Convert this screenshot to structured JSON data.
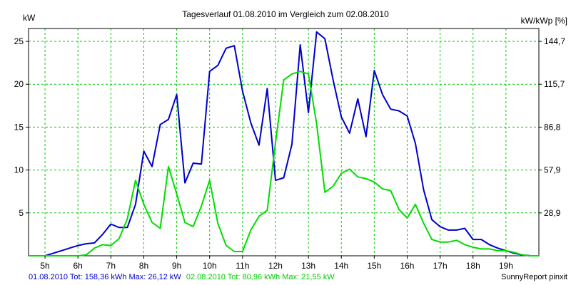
{
  "chart_data": {
    "type": "line",
    "title": "Tagesverlauf 01.08.2010 im Vergleich zum 02.08.2010",
    "ylabel_left": "kW",
    "ylabel_right": "kW/kWp [%]",
    "x_ticks": [
      "5h",
      "6h",
      "7h",
      "8h",
      "9h",
      "10h",
      "11h",
      "12h",
      "13h",
      "14h",
      "15h",
      "16h",
      "17h",
      "18h",
      "19h"
    ],
    "xlim_hours": [
      4.5,
      20.0
    ],
    "ylim": [
      0,
      26.5
    ],
    "y_ticks_left": [
      5,
      10,
      15,
      20,
      25
    ],
    "y_ticks_right": [
      "28,9",
      "57,9",
      "86,8",
      "115,7",
      "144,7"
    ],
    "grid": true,
    "series": [
      {
        "name": "01.08.2010",
        "color": "#0000cc",
        "x": [
          4.5,
          4.75,
          5.0,
          5.25,
          5.5,
          5.75,
          6.0,
          6.25,
          6.5,
          6.75,
          7.0,
          7.25,
          7.5,
          7.75,
          8.0,
          8.25,
          8.5,
          8.75,
          9.0,
          9.25,
          9.5,
          9.75,
          10.0,
          10.25,
          10.5,
          10.75,
          11.0,
          11.25,
          11.5,
          11.75,
          12.0,
          12.25,
          12.5,
          12.75,
          13.0,
          13.25,
          13.5,
          13.75,
          14.0,
          14.25,
          14.5,
          14.75,
          15.0,
          15.25,
          15.5,
          15.75,
          16.0,
          16.25,
          16.5,
          16.75,
          17.0,
          17.25,
          17.5,
          17.75,
          18.0,
          18.25,
          18.5,
          18.75,
          19.0,
          19.25,
          19.5,
          19.75,
          20.0
        ],
        "values": [
          0,
          0,
          0,
          0.3,
          0.6,
          0.9,
          1.2,
          1.4,
          1.5,
          2.5,
          3.7,
          3.3,
          3.3,
          6.0,
          12.2,
          10.4,
          15.3,
          15.9,
          18.8,
          8.5,
          10.8,
          10.7,
          21.5,
          22.2,
          24.2,
          24.5,
          19.2,
          15.5,
          12.9,
          19.5,
          8.8,
          9.1,
          13.0,
          24.6,
          16.7,
          26.1,
          25.3,
          20.5,
          16.2,
          14.3,
          18.3,
          13.9,
          21.6,
          18.8,
          17.1,
          16.9,
          16.3,
          13.1,
          7.7,
          4.2,
          3.4,
          3.0,
          3.0,
          3.2,
          1.9,
          1.9,
          1.3,
          0.9,
          0.6,
          0.3,
          0.1,
          0,
          0
        ]
      },
      {
        "name": "02.08.2010",
        "color": "#00dd00",
        "x": [
          4.5,
          4.75,
          5.0,
          5.25,
          5.5,
          5.75,
          6.0,
          6.25,
          6.5,
          6.75,
          7.0,
          7.25,
          7.5,
          7.75,
          8.0,
          8.25,
          8.5,
          8.75,
          9.0,
          9.25,
          9.5,
          9.75,
          10.0,
          10.25,
          10.5,
          10.75,
          11.0,
          11.25,
          11.5,
          11.75,
          12.0,
          12.25,
          12.5,
          12.75,
          13.0,
          13.25,
          13.5,
          13.75,
          14.0,
          14.25,
          14.5,
          14.75,
          15.0,
          15.25,
          15.5,
          15.75,
          16.0,
          16.25,
          16.5,
          16.75,
          17.0,
          17.25,
          17.5,
          17.75,
          18.0,
          18.25,
          18.5,
          18.75,
          19.0,
          19.25,
          19.5,
          19.75,
          20.0
        ],
        "values": [
          0,
          0,
          0,
          0,
          0,
          0,
          0,
          0.1,
          0.9,
          1.3,
          1.2,
          2.0,
          4.3,
          8.8,
          6.0,
          3.9,
          3.2,
          10.4,
          7.2,
          3.9,
          3.4,
          5.8,
          8.8,
          3.8,
          1.2,
          0.5,
          0.5,
          3.0,
          4.6,
          5.3,
          13.2,
          20.5,
          21.2,
          21.5,
          21.2,
          15.4,
          7.4,
          8.1,
          9.6,
          10.1,
          9.2,
          9.0,
          8.6,
          7.8,
          7.6,
          5.4,
          4.4,
          6.0,
          3.8,
          1.9,
          1.6,
          1.6,
          1.8,
          1.3,
          1.0,
          0.8,
          0.8,
          0.6,
          0.6,
          0.4,
          0.1,
          0,
          0
        ]
      }
    ]
  },
  "footer": {
    "series1_summary": "01.08.2010 Tot: 158,36 kWh Max: 26,12 kW",
    "series2_summary": "02.08.2010 Tot: 80,96 kWh Max: 21,55 kW",
    "credit": "SunnyReport pinxit"
  }
}
